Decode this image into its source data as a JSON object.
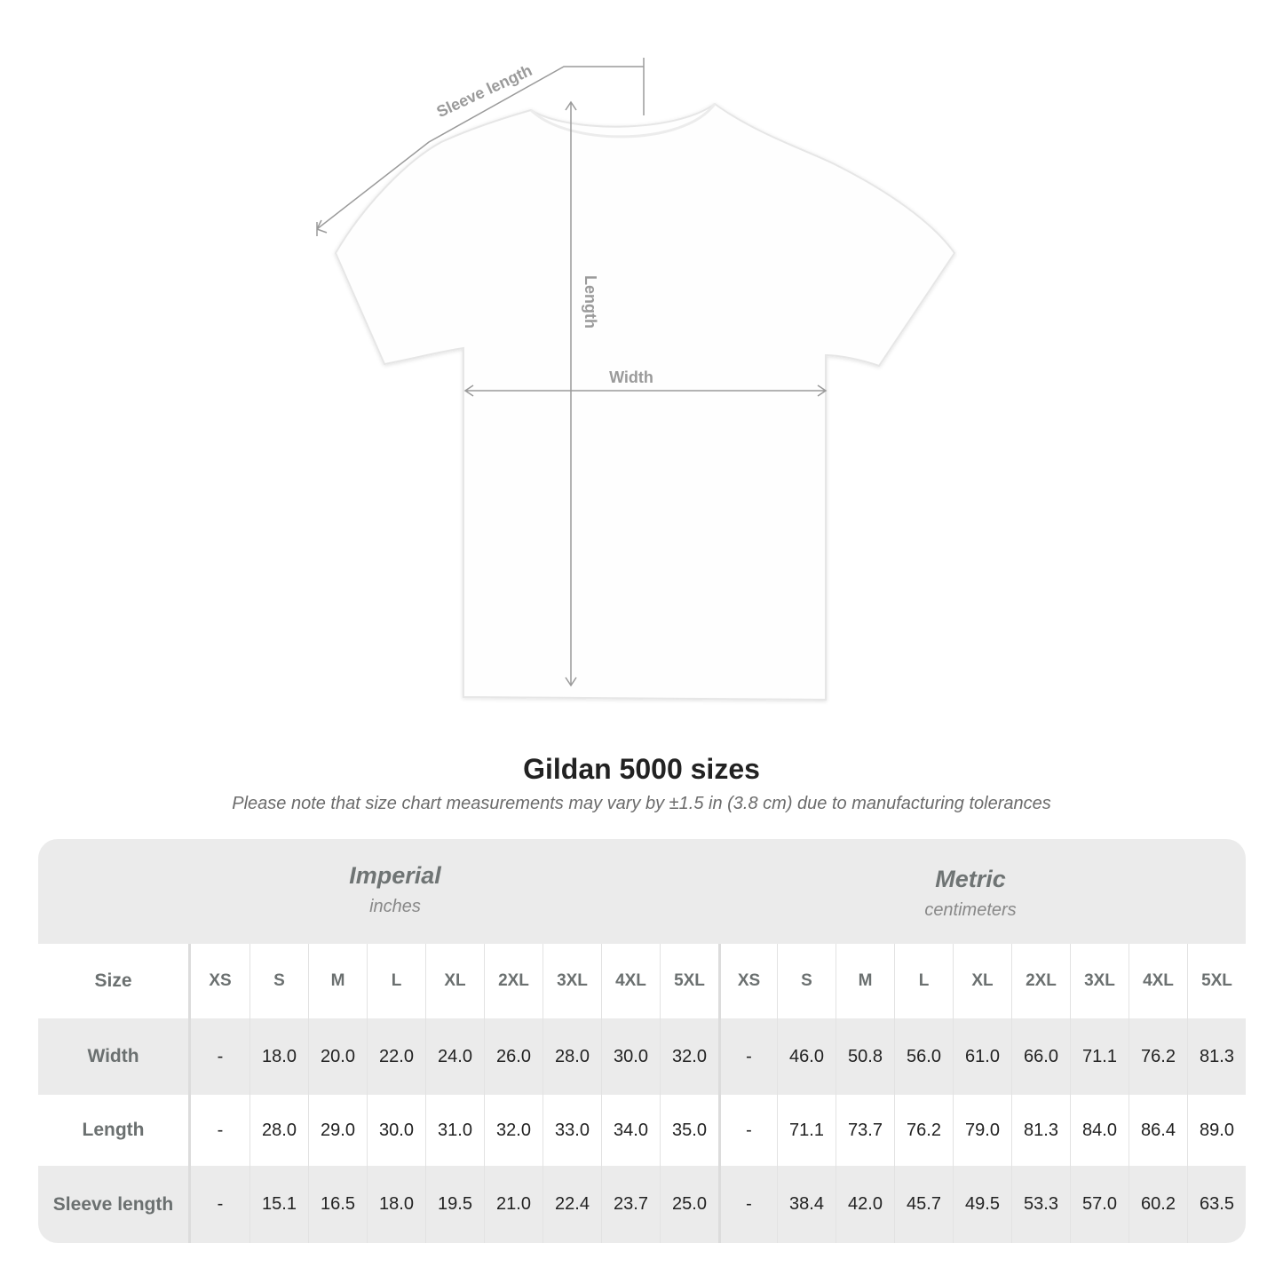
{
  "diagram": {
    "labels": {
      "sleeve": "Sleeve length",
      "length": "Length",
      "width": "Width"
    }
  },
  "title": "Gildan 5000 sizes",
  "note": "Please note that size chart measurements may vary by ±1.5 in (3.8 cm) due to manufacturing tolerances",
  "table": {
    "imperial": {
      "name": "Imperial",
      "unit": "inches"
    },
    "metric": {
      "name": "Metric",
      "unit": "centimeters"
    },
    "size_label": "Size",
    "sizes": [
      "XS",
      "S",
      "M",
      "L",
      "XL",
      "2XL",
      "3XL",
      "4XL",
      "5XL"
    ],
    "rows": [
      {
        "label": "Width",
        "imperial": [
          "-",
          "18.0",
          "20.0",
          "22.0",
          "24.0",
          "26.0",
          "28.0",
          "30.0",
          "32.0"
        ],
        "metric": [
          "-",
          "46.0",
          "50.8",
          "56.0",
          "61.0",
          "66.0",
          "71.1",
          "76.2",
          "81.3"
        ]
      },
      {
        "label": "Length",
        "imperial": [
          "-",
          "28.0",
          "29.0",
          "30.0",
          "31.0",
          "32.0",
          "33.0",
          "34.0",
          "35.0"
        ],
        "metric": [
          "-",
          "71.1",
          "73.7",
          "76.2",
          "79.0",
          "81.3",
          "84.0",
          "86.4",
          "89.0"
        ]
      },
      {
        "label": "Sleeve length",
        "imperial": [
          "-",
          "15.1",
          "16.5",
          "18.0",
          "19.5",
          "21.0",
          "22.4",
          "23.7",
          "25.0"
        ],
        "metric": [
          "-",
          "38.4",
          "42.0",
          "45.7",
          "49.5",
          "53.3",
          "57.0",
          "60.2",
          "63.5"
        ]
      }
    ]
  },
  "colors": {
    "band": "#ebebeb",
    "label": "#6b7070",
    "measure_line": "#9a9a9a"
  }
}
